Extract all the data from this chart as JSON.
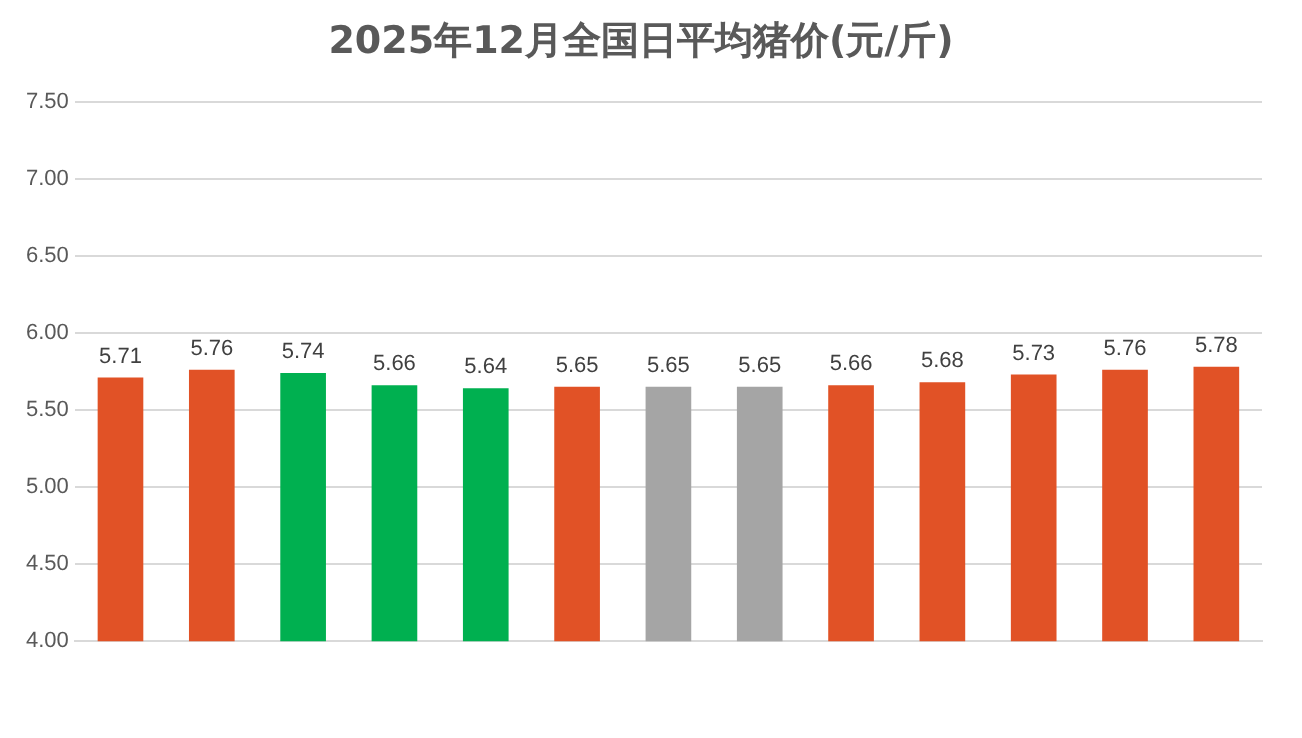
{
  "chart_data": {
    "type": "bar",
    "title": "2025年12月全国日平均猪价(元/斤)",
    "categories": [
      null,
      null,
      null,
      null,
      null,
      null,
      null,
      null,
      null,
      null,
      null,
      null,
      null
    ],
    "values": [
      5.71,
      5.76,
      5.74,
      5.66,
      5.64,
      5.65,
      5.65,
      5.65,
      5.66,
      5.68,
      5.73,
      5.76,
      5.78
    ],
    "colors": [
      "#e15226",
      "#e15226",
      "#00b050",
      "#00b050",
      "#00b050",
      "#e15226",
      "#a5a5a5",
      "#a5a5a5",
      "#e15226",
      "#e15226",
      "#e15226",
      "#e15226",
      "#e15226"
    ],
    "ylim": [
      4,
      7.5
    ],
    "yticks": [
      {
        "value": 4,
        "label": "4.00"
      },
      {
        "value": 4.5,
        "label": "4.50"
      },
      {
        "value": 5,
        "label": "5.00"
      },
      {
        "value": 5.5,
        "label": "5.50"
      },
      {
        "value": 6,
        "label": "6.00"
      },
      {
        "value": 6.5,
        "label": "6.50"
      },
      {
        "value": 7,
        "label": "7.00"
      },
      {
        "value": 7.5,
        "label": "7.50"
      }
    ],
    "grid": "y",
    "data_labels": true,
    "legend": false
  }
}
